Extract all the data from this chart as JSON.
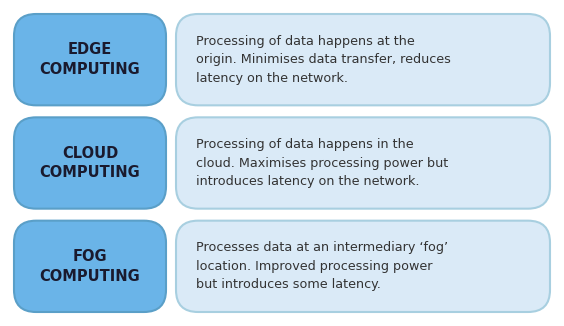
{
  "background_color": "#ffffff",
  "rows": [
    {
      "label": "EDGE\nCOMPUTING",
      "description": "Processing of data happens at the\norigin. Minimises data transfer, reduces\nlatency on the network."
    },
    {
      "label": "CLOUD\nCOMPUTING",
      "description": "Processing of data happens in the\ncloud. Maximises processing power but\nintroduces latency on the network."
    },
    {
      "label": "FOG\nCOMPUTING",
      "description": "Processes data at an intermediary ‘fog’\nlocation. Improved processing power\nbut introduces some latency."
    }
  ],
  "left_box_facecolor": "#6ab4e8",
  "right_box_facecolor": "#daeaf7",
  "left_box_edgecolor": "#5a9fc8",
  "right_box_edgecolor": "#a8cfe0",
  "label_color": "#1a1a2e",
  "desc_color": "#333333",
  "label_fontsize": 10.5,
  "desc_fontsize": 9.2,
  "fig_width": 5.64,
  "fig_height": 3.26,
  "dpi": 100
}
